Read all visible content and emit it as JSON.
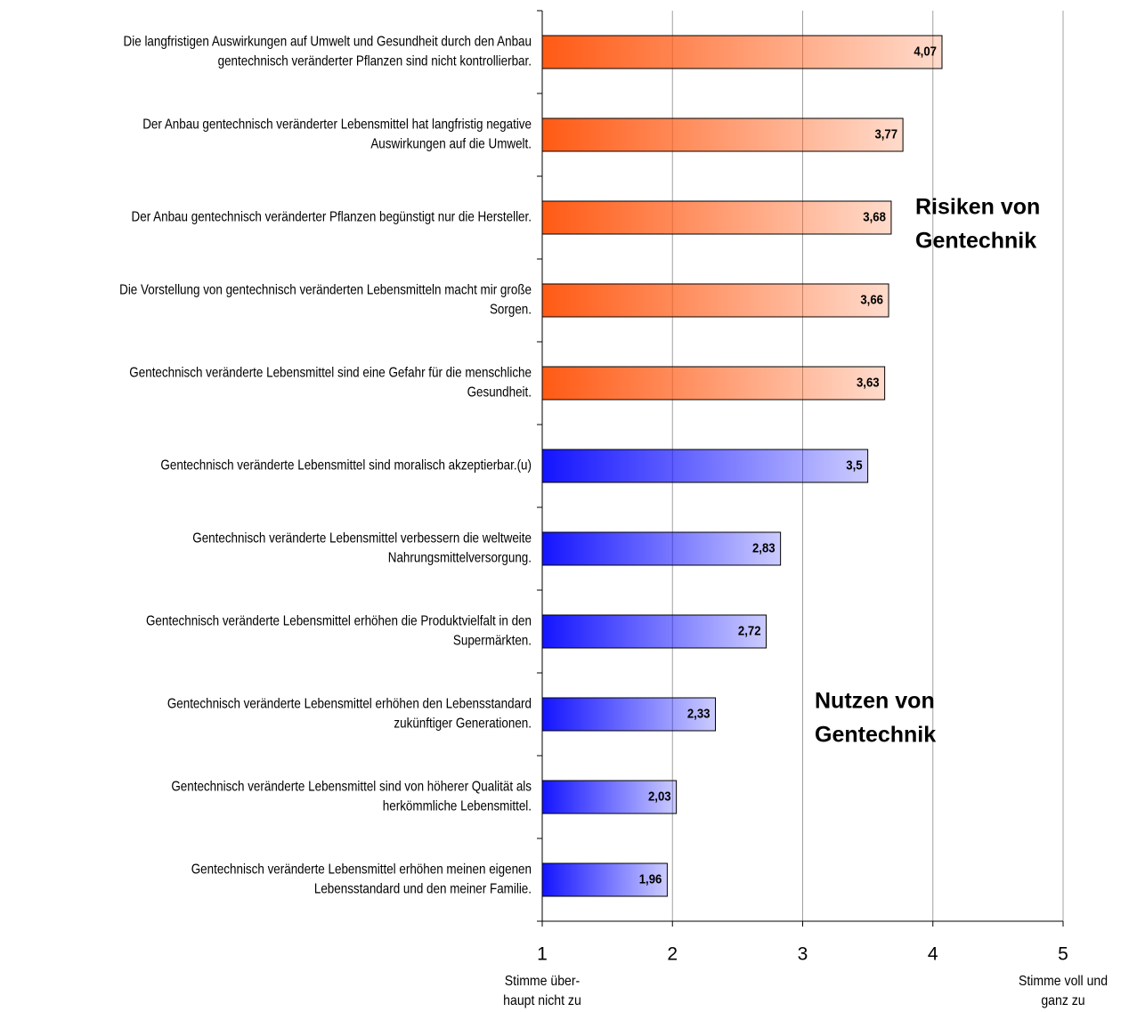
{
  "chart_data": {
    "type": "barh",
    "categories": [
      [
        "Die langfristigen Auswirkungen auf Umwelt und Gesundheit durch den Anbau",
        "gentechnisch veränderter Pflanzen sind nicht kontrollierbar."
      ],
      [
        "Der Anbau gentechnisch veränderter Lebensmittel hat langfristig negative",
        "Auswirkungen auf die Umwelt."
      ],
      [
        "Der Anbau gentechnisch veränderter Pflanzen begünstigt nur die Hersteller."
      ],
      [
        "Die Vorstellung von gentechnisch veränderten Lebensmitteln macht mir große",
        "Sorgen."
      ],
      [
        "Gentechnisch veränderte Lebensmittel sind eine Gefahr für die menschliche",
        "Gesundheit."
      ],
      [
        "Gentechnisch veränderte Lebensmittel sind moralisch akzeptierbar.(u)"
      ],
      [
        "Gentechnisch veränderte Lebensmittel verbessern die weltweite",
        "Nahrungsmittelversorgung."
      ],
      [
        "Gentechnisch veränderte Lebensmittel erhöhen die Produktvielfalt in den",
        "Supermärkten."
      ],
      [
        "Gentechnisch veränderte Lebensmittel erhöhen den Lebensstandard",
        "zukünftiger Generationen."
      ],
      [
        "Gentechnisch veränderte Lebensmittel sind von höherer Qualität als",
        "herkömmliche Lebensmittel."
      ],
      [
        "Gentechnisch veränderte Lebensmittel erhöhen meinen eigenen",
        "Lebensstandard und den meiner Familie."
      ]
    ],
    "values": [
      4.07,
      3.77,
      3.68,
      3.66,
      3.63,
      3.5,
      2.83,
      2.72,
      2.33,
      2.03,
      1.96
    ],
    "value_labels": [
      "4,07",
      "3,77",
      "3,68",
      "3,66",
      "3,63",
      "3,5",
      "2,83",
      "2,72",
      "2,33",
      "2,03",
      "1,96"
    ],
    "colors": [
      "#ff5a14",
      "#ff5a14",
      "#ff5a14",
      "#ff5a14",
      "#ff5a14",
      "#1414ff",
      "#1414ff",
      "#1414ff",
      "#1414ff",
      "#1414ff",
      "#1414ff"
    ],
    "xlim": [
      1,
      5
    ],
    "xticks": [
      1,
      2,
      3,
      4,
      5
    ],
    "grid": true,
    "xlabel_left": [
      "Stimme über-",
      "haupt nicht zu"
    ],
    "xlabel_right": [
      "Stimme voll und",
      "ganz zu"
    ],
    "annotations": [
      [
        "Risiken von",
        "Gentechnik"
      ],
      [
        "Nutzen von",
        "Gentechnik"
      ]
    ]
  }
}
